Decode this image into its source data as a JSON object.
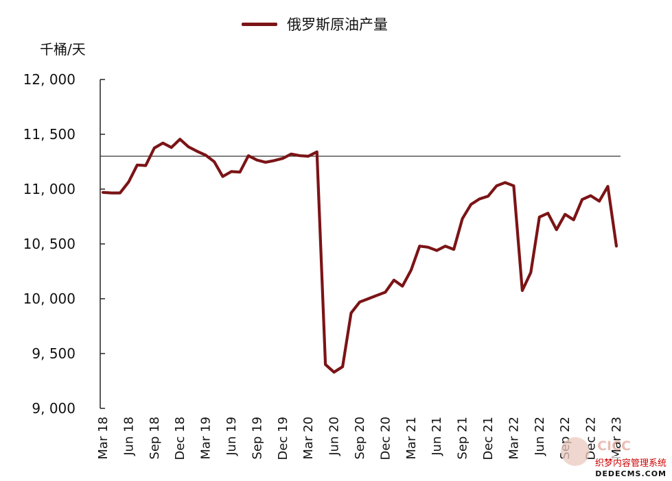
{
  "chart_data": {
    "type": "line",
    "title": "",
    "ylabel": "千桶/天",
    "xlabel": "",
    "ylim": [
      9000,
      12000
    ],
    "yticks": [
      9000,
      9500,
      10000,
      10500,
      11000,
      11500,
      12000
    ],
    "ytick_labels": [
      "9, 000",
      "9, 500",
      "10, 000",
      "10, 500",
      "11, 000",
      "11, 500",
      "12, 000"
    ],
    "grid": false,
    "legend_position": "top-center",
    "reference_line": 11300,
    "x_tick_labels": [
      "Mar 18",
      "Jun 18",
      "Sep 18",
      "Dec 18",
      "Mar 19",
      "Jun 19",
      "Sep 19",
      "Dec 19",
      "Mar 20",
      "Jun 20",
      "Sep 20",
      "Dec 20",
      "Mar 21",
      "Jun 21",
      "Sep 21",
      "Dec 21",
      "Mar 22",
      "Jun 22",
      "Sep 22",
      "Dec 22",
      "Mar 23"
    ],
    "x": [
      "2018-03",
      "2018-04",
      "2018-05",
      "2018-06",
      "2018-07",
      "2018-08",
      "2018-09",
      "2018-10",
      "2018-11",
      "2018-12",
      "2019-01",
      "2019-02",
      "2019-03",
      "2019-04",
      "2019-05",
      "2019-06",
      "2019-07",
      "2019-08",
      "2019-09",
      "2019-10",
      "2019-11",
      "2019-12",
      "2020-01",
      "2020-02",
      "2020-03",
      "2020-04",
      "2020-05",
      "2020-06",
      "2020-07",
      "2020-08",
      "2020-09",
      "2020-10",
      "2020-11",
      "2020-12",
      "2021-01",
      "2021-02",
      "2021-03",
      "2021-04",
      "2021-05",
      "2021-06",
      "2021-07",
      "2021-08",
      "2021-09",
      "2021-10",
      "2021-11",
      "2021-12",
      "2022-01",
      "2022-02",
      "2022-03",
      "2022-04",
      "2022-05",
      "2022-06",
      "2022-07",
      "2022-08",
      "2022-09",
      "2022-10",
      "2022-11",
      "2022-12",
      "2023-01",
      "2023-02",
      "2023-03"
    ],
    "series": [
      {
        "name": "俄罗斯原油产量",
        "color": "#7b1416",
        "values": [
          10970,
          10965,
          10965,
          11065,
          11220,
          11215,
          11375,
          11420,
          11380,
          11455,
          11385,
          11345,
          11310,
          11250,
          11115,
          11160,
          11155,
          11305,
          11265,
          11245,
          11260,
          11280,
          11320,
          11305,
          11300,
          11340,
          9400,
          9330,
          9380,
          9870,
          9970,
          10000,
          10030,
          10060,
          10170,
          10115,
          10260,
          10480,
          10470,
          10440,
          10480,
          10450,
          10730,
          10860,
          10910,
          10935,
          11030,
          11060,
          11030,
          10075,
          10240,
          10745,
          10780,
          10630,
          10770,
          10720,
          10905,
          10940,
          10890,
          11025,
          10480
        ]
      }
    ]
  },
  "legend": {
    "label": "俄罗斯原油产量"
  },
  "watermark": {
    "brand": "CICC",
    "text": "织梦内容管理系统",
    "site": "DEDECMS.COM"
  }
}
